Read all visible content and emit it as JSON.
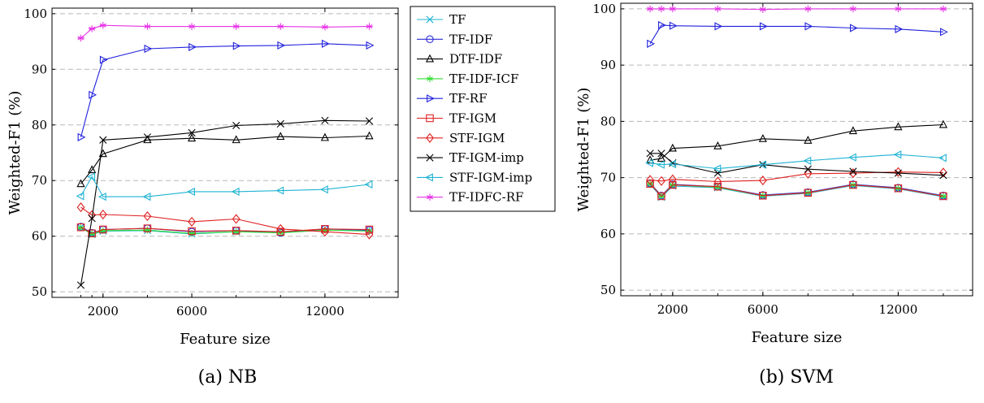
{
  "chart_data": [
    {
      "type": "line",
      "panel": "(a) NB",
      "caption": "(a) NB",
      "xlabel": "Feature size",
      "ylabel": "Weighted-F1 (%)",
      "xticks": [
        2000,
        6000,
        12000
      ],
      "yticks": [
        50,
        60,
        70,
        80,
        90,
        100
      ],
      "xlim": [
        -300,
        15300
      ],
      "ylim": [
        49,
        101
      ],
      "grid": "horizontal-dashed",
      "x": [
        1000,
        1500,
        2000,
        4000,
        6000,
        8000,
        10000,
        12000,
        14000
      ],
      "series": [
        {
          "name": "TF",
          "values": [
            61.6,
            60.3,
            60.9,
            61.0,
            60.4,
            60.8,
            60.7,
            61.1,
            61.0
          ]
        },
        {
          "name": "TF-IDF",
          "values": [
            61.7,
            60.6,
            61.2,
            61.4,
            60.8,
            61.0,
            60.6,
            61.3,
            61.1
          ]
        },
        {
          "name": "DTF-IDF",
          "values": [
            69.4,
            71.9,
            74.8,
            77.3,
            77.6,
            77.3,
            77.9,
            77.7,
            78.0
          ]
        },
        {
          "name": "TF-IDF-ICF",
          "values": [
            61.5,
            60.4,
            61.0,
            61.1,
            60.5,
            60.8,
            60.6,
            61.1,
            60.9
          ]
        },
        {
          "name": "TF-RF",
          "values": [
            77.8,
            85.4,
            91.7,
            93.7,
            94.0,
            94.2,
            94.3,
            94.6,
            94.3
          ]
        },
        {
          "name": "TF-IGM",
          "values": [
            61.6,
            60.5,
            61.2,
            61.4,
            60.9,
            61.0,
            60.8,
            61.3,
            61.2
          ]
        },
        {
          "name": "STF-IGM",
          "values": [
            65.2,
            63.8,
            63.9,
            63.6,
            62.6,
            63.1,
            61.3,
            60.8,
            60.3
          ]
        },
        {
          "name": "TF-IGM-imp",
          "values": [
            51.2,
            63.2,
            77.3,
            77.8,
            78.6,
            79.9,
            80.2,
            80.8,
            80.7
          ]
        },
        {
          "name": "STF-IGM-imp",
          "values": [
            67.2,
            70.7,
            67.1,
            67.1,
            68.0,
            68.0,
            68.2,
            68.4,
            69.3
          ]
        },
        {
          "name": "TF-IDFC-RF",
          "values": [
            95.6,
            97.3,
            97.9,
            97.7,
            97.7,
            97.7,
            97.7,
            97.6,
            97.7
          ]
        }
      ]
    },
    {
      "type": "line",
      "panel": "(b) SVM",
      "caption": "(b) SVM",
      "xlabel": "Feature size",
      "ylabel": "Weighted-F1 (%)",
      "xticks": [
        2000,
        6000,
        12000
      ],
      "yticks": [
        50,
        60,
        70,
        80,
        90,
        100
      ],
      "xlim": [
        -300,
        15300
      ],
      "ylim": [
        49,
        101
      ],
      "grid": "horizontal-dashed",
      "x": [
        1000,
        1500,
        2000,
        4000,
        6000,
        8000,
        10000,
        12000,
        14000
      ],
      "series": [
        {
          "name": "TF",
          "values": [
            68.8,
            66.5,
            68.5,
            68.2,
            66.7,
            67.2,
            68.6,
            68.0,
            66.6
          ]
        },
        {
          "name": "TF-IDF",
          "values": [
            69.0,
            66.8,
            68.8,
            68.4,
            66.9,
            67.4,
            68.8,
            68.2,
            66.8
          ]
        },
        {
          "name": "DTF-IDF",
          "values": [
            73.1,
            73.4,
            75.2,
            75.6,
            76.9,
            76.6,
            78.3,
            79.0,
            79.4
          ]
        },
        {
          "name": "TF-IDF-ICF",
          "values": [
            68.9,
            66.7,
            68.7,
            68.3,
            66.8,
            67.3,
            68.7,
            68.1,
            66.7
          ]
        },
        {
          "name": "TF-RF",
          "values": [
            93.8,
            97.1,
            97.0,
            96.9,
            96.9,
            96.9,
            96.6,
            96.4,
            95.9
          ]
        },
        {
          "name": "TF-IGM",
          "values": [
            68.9,
            66.7,
            68.7,
            68.4,
            66.8,
            67.3,
            68.7,
            68.1,
            66.7
          ]
        },
        {
          "name": "STF-IGM",
          "values": [
            69.6,
            69.4,
            69.7,
            69.3,
            69.5,
            70.7,
            70.8,
            71.0,
            70.9
          ]
        },
        {
          "name": "TF-IGM-imp",
          "values": [
            74.3,
            74.3,
            72.6,
            70.8,
            72.3,
            71.5,
            71.1,
            70.8,
            70.4
          ]
        },
        {
          "name": "STF-IGM-imp",
          "values": [
            72.6,
            72.3,
            72.4,
            71.6,
            72.3,
            73.0,
            73.6,
            74.1,
            73.5
          ]
        },
        {
          "name": "TF-IDFC-RF",
          "values": [
            100.0,
            100.0,
            100.0,
            100.0,
            99.9,
            100.0,
            100.0,
            100.0,
            100.0
          ]
        }
      ]
    }
  ],
  "series_styles": [
    {
      "name": "TF",
      "color": "#1fb3d3",
      "marker": "x"
    },
    {
      "name": "TF-IDF",
      "color": "#2b2bd6",
      "marker": "circle"
    },
    {
      "name": "DTF-IDF",
      "color": "#000000",
      "marker": "triangle-up"
    },
    {
      "name": "TF-IDF-ICF",
      "color": "#33dd33",
      "marker": "star"
    },
    {
      "name": "TF-RF",
      "color": "#2222dd",
      "marker": "triangle-right"
    },
    {
      "name": "TF-IGM",
      "color": "#e02020",
      "marker": "square"
    },
    {
      "name": "STF-IGM",
      "color": "#e02020",
      "marker": "diamond"
    },
    {
      "name": "TF-IGM-imp",
      "color": "#000000",
      "marker": "x"
    },
    {
      "name": "STF-IGM-imp",
      "color": "#1fb3d3",
      "marker": "triangle-left"
    },
    {
      "name": "TF-IDFC-RF",
      "color": "#e633e6",
      "marker": "star"
    }
  ],
  "legend": {
    "placement": "between-panels",
    "entries": [
      "TF",
      "TF-IDF",
      "DTF-IDF",
      "TF-IDF-ICF",
      "TF-RF",
      "TF-IGM",
      "STF-IGM",
      "TF-IGM-imp",
      "STF-IGM-imp",
      "TF-IDFC-RF"
    ]
  }
}
